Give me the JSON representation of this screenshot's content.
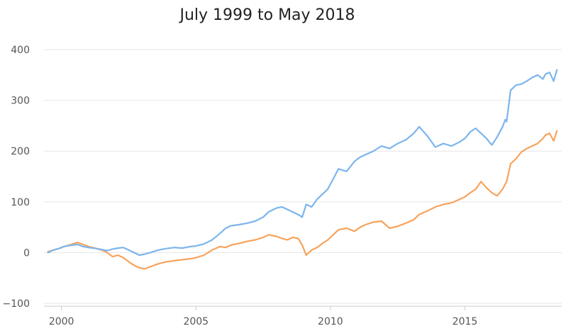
{
  "chart_data": {
    "type": "line",
    "title": "July 1999 to May 2018",
    "xlabel": "",
    "ylabel": "",
    "xlim": [
      1999.35,
      2018.6
    ],
    "ylim": [
      -100,
      420
    ],
    "x_ticks": [
      2000,
      2005,
      2010,
      2015
    ],
    "x_tick_labels": [
      "2000",
      "2005",
      "2010",
      "2015"
    ],
    "y_ticks": [
      -100,
      0,
      100,
      200,
      300,
      400
    ],
    "y_tick_labels": [
      "−100",
      "0",
      "100",
      "200",
      "300",
      "400"
    ],
    "grid": true,
    "legend": "none",
    "series": [
      {
        "color": "#7cb5ec",
        "x": [
          1999.5,
          1999.7,
          1999.9,
          2000.1,
          2000.3,
          2000.6,
          2000.8,
          2001.0,
          2001.3,
          2001.5,
          2001.7,
          2001.9,
          2002.1,
          2002.3,
          2002.5,
          2002.7,
          2002.9,
          2003.1,
          2003.3,
          2003.6,
          2003.9,
          2004.2,
          2004.5,
          2004.8,
          2005.0,
          2005.3,
          2005.6,
          2005.9,
          2006.1,
          2006.3,
          2006.6,
          2006.9,
          2007.2,
          2007.5,
          2007.7,
          2008.0,
          2008.2,
          2008.4,
          2008.6,
          2008.8,
          2008.95,
          2009.1,
          2009.3,
          2009.5,
          2009.7,
          2009.9,
          2010.1,
          2010.3,
          2010.6,
          2010.9,
          2011.1,
          2011.3,
          2011.6,
          2011.9,
          2012.2,
          2012.5,
          2012.8,
          2013.1,
          2013.3,
          2013.6,
          2013.9,
          2014.2,
          2014.5,
          2014.8,
          2015.0,
          2015.2,
          2015.4,
          2015.6,
          2015.8,
          2016.0,
          2016.2,
          2016.4,
          2016.5,
          2016.55,
          2016.7,
          2016.9,
          2017.1,
          2017.3,
          2017.5,
          2017.7,
          2017.9,
          2018.0,
          2018.15,
          2018.3,
          2018.42
        ],
        "y": [
          0,
          5,
          8,
          12,
          14,
          16,
          12,
          10,
          8,
          6,
          4,
          7,
          9,
          10,
          5,
          0,
          -5,
          -3,
          0,
          5,
          8,
          10,
          9,
          12,
          13,
          17,
          25,
          38,
          48,
          53,
          55,
          58,
          62,
          70,
          80,
          88,
          90,
          85,
          80,
          75,
          70,
          95,
          90,
          105,
          115,
          125,
          145,
          165,
          160,
          180,
          188,
          193,
          200,
          210,
          205,
          215,
          222,
          235,
          248,
          230,
          208,
          215,
          210,
          218,
          225,
          238,
          245,
          235,
          225,
          212,
          228,
          248,
          262,
          258,
          320,
          330,
          332,
          338,
          345,
          350,
          342,
          352,
          355,
          338,
          360
        ]
      },
      {
        "color": "#f7a35c",
        "x": [
          1999.5,
          1999.7,
          1999.9,
          2000.1,
          2000.3,
          2000.6,
          2000.8,
          2001.0,
          2001.3,
          2001.5,
          2001.7,
          2001.9,
          2002.1,
          2002.3,
          2002.5,
          2002.7,
          2002.9,
          2003.1,
          2003.3,
          2003.6,
          2003.9,
          2004.2,
          2004.5,
          2004.8,
          2005.0,
          2005.3,
          2005.6,
          2005.9,
          2006.1,
          2006.3,
          2006.6,
          2006.9,
          2007.2,
          2007.5,
          2007.7,
          2008.0,
          2008.2,
          2008.4,
          2008.6,
          2008.8,
          2008.95,
          2009.1,
          2009.3,
          2009.5,
          2009.7,
          2009.9,
          2010.1,
          2010.3,
          2010.6,
          2010.9,
          2011.1,
          2011.3,
          2011.6,
          2011.9,
          2012.2,
          2012.5,
          2012.8,
          2013.1,
          2013.3,
          2013.6,
          2013.9,
          2014.2,
          2014.5,
          2014.8,
          2015.0,
          2015.2,
          2015.4,
          2015.6,
          2015.8,
          2016.0,
          2016.2,
          2016.4,
          2016.5,
          2016.55,
          2016.7,
          2016.9,
          2017.1,
          2017.3,
          2017.5,
          2017.7,
          2017.9,
          2018.0,
          2018.15,
          2018.3,
          2018.42
        ],
        "y": [
          2,
          5,
          8,
          12,
          15,
          20,
          16,
          12,
          8,
          5,
          0,
          -8,
          -5,
          -10,
          -18,
          -25,
          -30,
          -32,
          -28,
          -22,
          -18,
          -16,
          -14,
          -12,
          -10,
          -5,
          5,
          12,
          10,
          15,
          18,
          22,
          25,
          30,
          35,
          32,
          28,
          25,
          30,
          28,
          15,
          -5,
          5,
          10,
          18,
          25,
          35,
          45,
          48,
          42,
          50,
          55,
          60,
          62,
          48,
          52,
          58,
          65,
          75,
          82,
          90,
          95,
          98,
          105,
          110,
          118,
          125,
          140,
          128,
          118,
          112,
          125,
          135,
          140,
          175,
          185,
          198,
          205,
          210,
          215,
          225,
          232,
          235,
          220,
          240
        ]
      }
    ]
  }
}
